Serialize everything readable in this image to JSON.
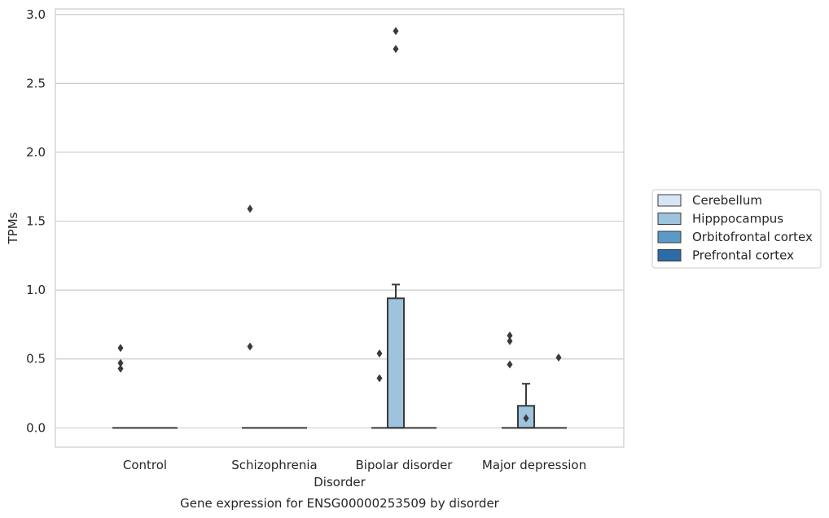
{
  "chart_data": {
    "type": "box",
    "title": "Gene expression for ENSG00000253509 by disorder",
    "xlabel": "Disorder",
    "ylabel": "TPMs",
    "ylim": [
      -0.14,
      3.04
    ],
    "yticks": [
      "0.0",
      "0.5",
      "1.0",
      "1.5",
      "2.0",
      "2.5",
      "3.0"
    ],
    "categories": [
      "Control",
      "Schizophrenia",
      "Bipolar disorder",
      "Major depression"
    ],
    "grid": "horizontal",
    "legend_position": "right",
    "series": [
      {
        "name": "Cerebellum",
        "color": "#d6e5f4",
        "boxes": [
          {
            "q1": 0,
            "median": 0,
            "q3": 0,
            "whisker_low": 0,
            "whisker_high": 0,
            "outliers": [
              0.43,
              0.47,
              0.58
            ]
          },
          {
            "q1": 0,
            "median": 0,
            "q3": 0,
            "whisker_low": 0,
            "whisker_high": 0,
            "outliers": [
              0.59,
              1.59
            ]
          },
          {
            "q1": 0,
            "median": 0,
            "q3": 0,
            "whisker_low": 0,
            "whisker_high": 0,
            "outliers": [
              0.36,
              0.54
            ]
          },
          {
            "q1": 0,
            "median": 0,
            "q3": 0,
            "whisker_low": 0,
            "whisker_high": 0,
            "outliers": [
              0.46,
              0.63,
              0.67
            ]
          }
        ]
      },
      {
        "name": "Hipppocampus",
        "color": "#9dc3dd",
        "boxes": [
          {
            "q1": 0,
            "median": 0,
            "q3": 0,
            "whisker_low": 0,
            "whisker_high": 0,
            "outliers": []
          },
          {
            "q1": 0,
            "median": 0,
            "q3": 0,
            "whisker_low": 0,
            "whisker_high": 0,
            "outliers": []
          },
          {
            "q1": 0,
            "median": 0,
            "q3": 0.94,
            "whisker_low": 0,
            "whisker_high": 1.04,
            "outliers": [
              2.75,
              2.88
            ]
          },
          {
            "q1": 0,
            "median": 0,
            "q3": 0.16,
            "whisker_low": 0,
            "whisker_high": 0.32,
            "outliers": [
              0.07
            ]
          }
        ]
      },
      {
        "name": "Orbitofrontal cortex",
        "color": "#5b99c6",
        "boxes": [
          {
            "q1": 0,
            "median": 0,
            "q3": 0,
            "whisker_low": 0,
            "whisker_high": 0,
            "outliers": []
          },
          {
            "q1": 0,
            "median": 0,
            "q3": 0,
            "whisker_low": 0,
            "whisker_high": 0,
            "outliers": []
          },
          {
            "q1": 0,
            "median": 0,
            "q3": 0,
            "whisker_low": 0,
            "whisker_high": 0,
            "outliers": []
          },
          {
            "q1": 0,
            "median": 0,
            "q3": 0,
            "whisker_low": 0,
            "whisker_high": 0,
            "outliers": []
          }
        ]
      },
      {
        "name": "Prefrontal cortex",
        "color": "#2c6ba8",
        "boxes": [
          {
            "q1": 0,
            "median": 0,
            "q3": 0,
            "whisker_low": 0,
            "whisker_high": 0,
            "outliers": []
          },
          {
            "q1": 0,
            "median": 0,
            "q3": 0,
            "whisker_low": 0,
            "whisker_high": 0,
            "outliers": []
          },
          {
            "q1": 0,
            "median": 0,
            "q3": 0,
            "whisker_low": 0,
            "whisker_high": 0,
            "outliers": []
          },
          {
            "q1": 0,
            "median": 0,
            "q3": 0,
            "whisker_low": 0,
            "whisker_high": 0,
            "outliers": [
              0.51
            ]
          }
        ]
      }
    ]
  },
  "colors": {
    "grid": "#cccccc",
    "frame": "#cccccc",
    "box_edge": "#3a3a3a",
    "text": "#262626",
    "legend_border": "#cccccc"
  }
}
